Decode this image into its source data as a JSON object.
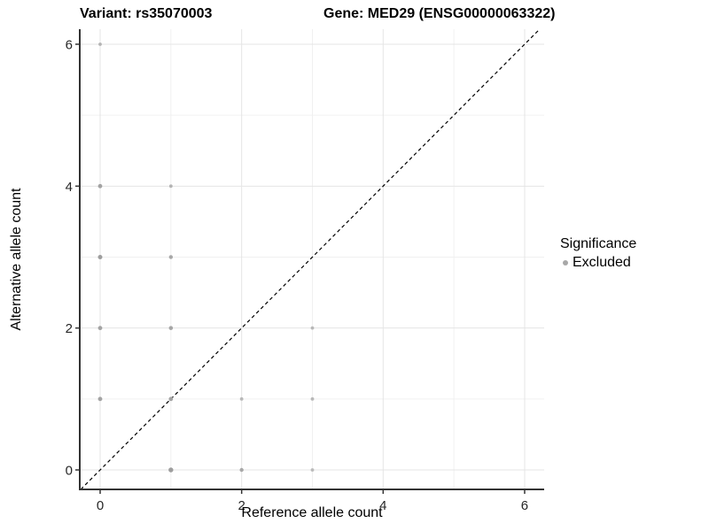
{
  "chart_data": {
    "type": "scatter",
    "title_variant": "Variant: rs35070003",
    "title_gene": "Gene: MED29 (ENSG00000063322)",
    "xlabel": "Reference allele count",
    "ylabel": "Alternative allele count",
    "x_axis": {
      "ticks": [
        0,
        2,
        4,
        6
      ],
      "minor_ticks": [
        1,
        3,
        5
      ],
      "range": [
        -0.29,
        6.28
      ]
    },
    "y_axis": {
      "ticks": [
        0,
        2,
        4,
        6
      ],
      "minor_ticks": [
        1,
        3,
        5
      ],
      "range": [
        -0.28,
        6.21
      ]
    },
    "identity_line": {
      "type": "y=x",
      "style": "dashed",
      "color": "#000000"
    },
    "legend": {
      "title": "Significance",
      "items": [
        {
          "label": "Excluded",
          "color": "#a8a8a8"
        }
      ]
    },
    "points": [
      {
        "x": 0,
        "y": 1,
        "r": 2.4,
        "color": "#a3a3a3"
      },
      {
        "x": 0,
        "y": 2,
        "r": 2.4,
        "color": "#a3a3a3"
      },
      {
        "x": 0,
        "y": 3,
        "r": 2.5,
        "color": "#9e9e9e"
      },
      {
        "x": 0,
        "y": 4,
        "r": 2.4,
        "color": "#a3a3a3"
      },
      {
        "x": 0,
        "y": 6,
        "r": 1.9,
        "color": "#b4b4b4"
      },
      {
        "x": 1,
        "y": 0,
        "r": 2.7,
        "color": "#9e9e9e"
      },
      {
        "x": 1,
        "y": 1,
        "r": 2.4,
        "color": "#a3a3a3"
      },
      {
        "x": 1,
        "y": 2,
        "r": 2.3,
        "color": "#a6a6a6"
      },
      {
        "x": 1,
        "y": 3,
        "r": 2.2,
        "color": "#a8a8a8"
      },
      {
        "x": 1,
        "y": 4,
        "r": 1.9,
        "color": "#b4b4b4"
      },
      {
        "x": 2,
        "y": 0,
        "r": 2.2,
        "color": "#a8a8a8"
      },
      {
        "x": 2,
        "y": 1,
        "r": 1.9,
        "color": "#b8b8b8"
      },
      {
        "x": 3,
        "y": 0,
        "r": 1.9,
        "color": "#bababa"
      },
      {
        "x": 3,
        "y": 1,
        "r": 1.9,
        "color": "#b8b8b8"
      },
      {
        "x": 3,
        "y": 2,
        "r": 1.9,
        "color": "#b8b8b8"
      }
    ],
    "colors": {
      "grid_major": "#e5e5e5",
      "grid_minor": "#f0f0f0",
      "axis": "#333333",
      "tick_text": "#262626",
      "point": "#a8a8a8"
    }
  }
}
